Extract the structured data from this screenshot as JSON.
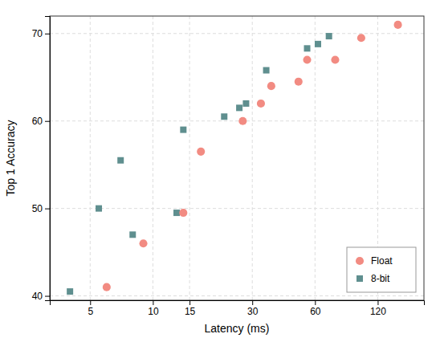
{
  "chart_data": {
    "type": "scatter",
    "xlabel": "Latency (ms)",
    "ylabel": "Top 1 Accuracy",
    "log": "x",
    "xlim": [
      3.2,
      200
    ],
    "ylim": [
      39.5,
      72
    ],
    "xticks": [
      5,
      10,
      15,
      30,
      60,
      120
    ],
    "yticks": [
      40,
      50,
      60,
      70
    ],
    "grid": true,
    "legend": "lower right",
    "series": [
      {
        "name": "Float",
        "color": "#F28B82",
        "marker": "circle",
        "x": [
          6,
          9,
          14,
          17,
          27,
          33,
          37,
          50,
          55,
          75,
          100,
          150
        ],
        "values": [
          41,
          46,
          49.5,
          56.5,
          60,
          62,
          64,
          64.5,
          67,
          67,
          69.5,
          71
        ]
      },
      {
        "name": "8-bit",
        "color": "#5F8F8F",
        "marker": "square",
        "x": [
          4,
          5.5,
          7,
          8,
          13,
          14,
          22,
          26,
          28,
          35,
          55,
          62,
          70
        ],
        "values": [
          40.5,
          50,
          55.5,
          47,
          49.5,
          59,
          60.5,
          61.5,
          62,
          65.8,
          68.3,
          68.8,
          69.7
        ]
      }
    ]
  }
}
